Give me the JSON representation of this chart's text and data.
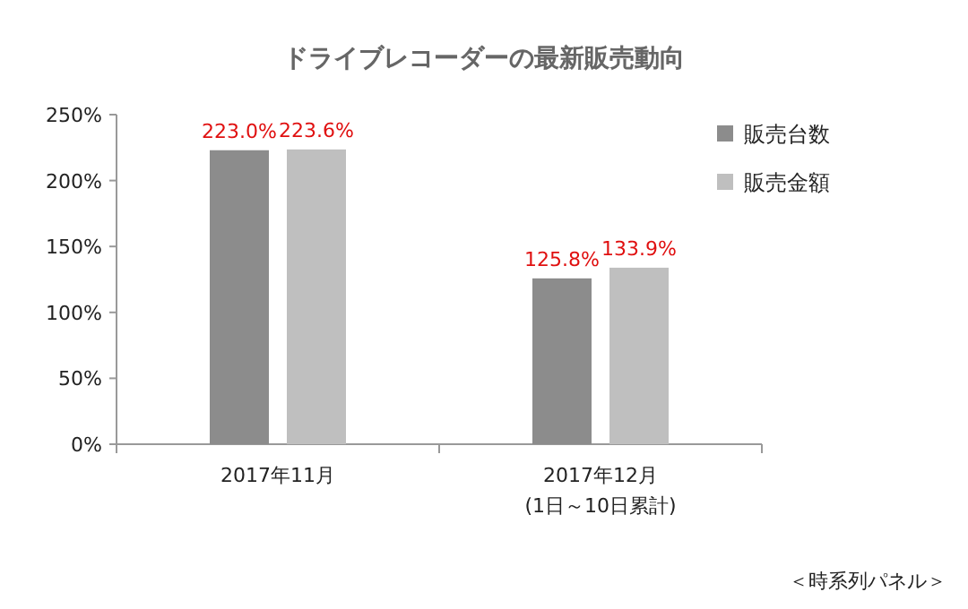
{
  "chart_data": {
    "type": "bar",
    "title": "ドライブレコーダーの最新販売動向",
    "categories": [
      "2017年11月",
      "2017年12月\n(1日～10日累計)"
    ],
    "series": [
      {
        "name": "販売台数",
        "color": "#8c8c8c",
        "values": [
          223.0,
          125.8
        ],
        "value_labels": [
          "223.0%",
          "125.8%"
        ]
      },
      {
        "name": "販売金額",
        "color": "#bfbfbf",
        "values": [
          223.6,
          133.9
        ],
        "value_labels": [
          "223.6%",
          "133.9%"
        ]
      }
    ],
    "ylim": [
      0,
      250
    ],
    "yticks": [
      {
        "value": 0,
        "label": "0%"
      },
      {
        "value": 50,
        "label": "50%"
      },
      {
        "value": 100,
        "label": "100%"
      },
      {
        "value": 150,
        "label": "150%"
      },
      {
        "value": 200,
        "label": "200%"
      },
      {
        "value": 250,
        "label": "250%"
      }
    ],
    "legend": "top right",
    "grid": false,
    "annotations": [
      "＜時系列パネル＞"
    ]
  }
}
